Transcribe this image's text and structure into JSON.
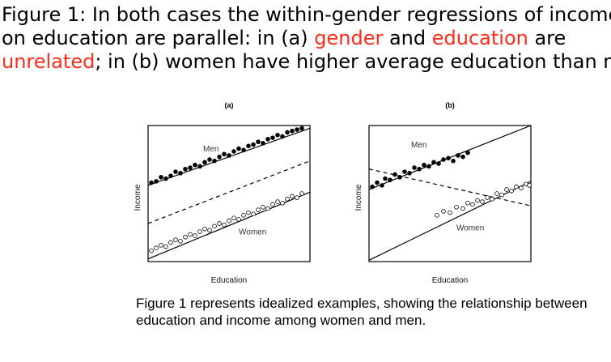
{
  "headline": {
    "line1": "Figure 1: In both cases the within-gender regressions of income",
    "line2_a": "on education are parallel: in (a) ",
    "line2_hl1": "gender",
    "line2_b": " and ",
    "line2_hl2": "education",
    "line2_c": " are",
    "line3_hl": "unrelated",
    "line3_a": "; in (b) women have higher average education than men"
  },
  "caption": "Figure 1 represents idealized examples, showing the relationship between education and income among women and men.",
  "colors": {
    "highlight": "#ff2a1a",
    "ink": "#000000"
  },
  "chart_data": [
    {
      "type": "scatter",
      "title": "(a)",
      "xlabel": "Education",
      "ylabel": "Income",
      "xlim": [
        0,
        10
      ],
      "ylim": [
        0,
        10
      ],
      "series": [
        {
          "name": "Men",
          "marker": "filled",
          "points": [
            [
              0.2,
              5.8
            ],
            [
              0.5,
              5.9
            ],
            [
              0.8,
              6.2
            ],
            [
              1.1,
              6.1
            ],
            [
              1.4,
              6.3
            ],
            [
              1.7,
              6.6
            ],
            [
              2.0,
              6.5
            ],
            [
              2.3,
              6.8
            ],
            [
              2.6,
              6.9
            ],
            [
              2.9,
              7.1
            ],
            [
              3.2,
              7.0
            ],
            [
              3.5,
              7.3
            ],
            [
              3.8,
              7.5
            ],
            [
              4.1,
              7.4
            ],
            [
              4.4,
              7.7
            ],
            [
              4.7,
              7.9
            ],
            [
              5.0,
              7.8
            ],
            [
              5.3,
              8.1
            ],
            [
              5.6,
              8.3
            ],
            [
              5.9,
              8.2
            ],
            [
              6.2,
              8.5
            ],
            [
              6.5,
              8.6
            ],
            [
              6.8,
              8.8
            ],
            [
              7.1,
              8.7
            ],
            [
              7.4,
              9.0
            ],
            [
              7.7,
              9.1
            ],
            [
              8.0,
              9.3
            ],
            [
              8.3,
              9.2
            ],
            [
              8.6,
              9.5
            ],
            [
              8.9,
              9.6
            ],
            [
              9.2,
              9.7
            ],
            [
              9.5,
              9.8
            ]
          ]
        },
        {
          "name": "Women",
          "marker": "open",
          "points": [
            [
              0.2,
              0.8
            ],
            [
              0.5,
              1.0
            ],
            [
              0.8,
              1.2
            ],
            [
              1.1,
              1.1
            ],
            [
              1.4,
              1.4
            ],
            [
              1.7,
              1.6
            ],
            [
              2.0,
              1.5
            ],
            [
              2.3,
              1.8
            ],
            [
              2.6,
              2.0
            ],
            [
              2.9,
              1.9
            ],
            [
              3.2,
              2.2
            ],
            [
              3.5,
              2.4
            ],
            [
              3.8,
              2.3
            ],
            [
              4.1,
              2.6
            ],
            [
              4.4,
              2.8
            ],
            [
              4.7,
              2.7
            ],
            [
              5.0,
              3.0
            ],
            [
              5.3,
              3.2
            ],
            [
              5.6,
              3.1
            ],
            [
              5.9,
              3.4
            ],
            [
              6.2,
              3.6
            ],
            [
              6.5,
              3.5
            ],
            [
              6.8,
              3.8
            ],
            [
              7.1,
              4.0
            ],
            [
              7.4,
              3.9
            ],
            [
              7.7,
              4.2
            ],
            [
              8.0,
              4.4
            ],
            [
              8.3,
              4.3
            ],
            [
              8.6,
              4.6
            ],
            [
              8.9,
              4.8
            ],
            [
              9.2,
              4.7
            ],
            [
              9.5,
              5.0
            ]
          ]
        }
      ],
      "fits": [
        {
          "style": "solid",
          "from": [
            0,
            5.6
          ],
          "to": [
            10,
            9.8
          ]
        },
        {
          "style": "solid",
          "from": [
            0,
            0.2
          ],
          "to": [
            10,
            5.1
          ]
        },
        {
          "style": "dashed",
          "from": [
            0,
            2.8
          ],
          "to": [
            10,
            7.4
          ]
        }
      ],
      "labels": [
        {
          "text": "Men",
          "at": [
            3.4,
            8.1
          ]
        },
        {
          "text": "Women",
          "at": [
            5.6,
            2.0
          ]
        }
      ]
    },
    {
      "type": "scatter",
      "title": "(b)",
      "xlabel": "Education",
      "ylabel": "Income",
      "xlim": [
        0,
        10
      ],
      "ylim": [
        0,
        10
      ],
      "series": [
        {
          "name": "Men",
          "marker": "filled",
          "points": [
            [
              0.2,
              5.5
            ],
            [
              0.5,
              5.8
            ],
            [
              0.8,
              5.6
            ],
            [
              1.0,
              6.1
            ],
            [
              1.3,
              6.0
            ],
            [
              1.6,
              6.4
            ],
            [
              1.9,
              6.2
            ],
            [
              2.2,
              6.6
            ],
            [
              2.5,
              6.5
            ],
            [
              2.8,
              6.9
            ],
            [
              3.1,
              6.8
            ],
            [
              3.4,
              7.1
            ],
            [
              3.7,
              7.0
            ],
            [
              4.0,
              7.3
            ],
            [
              4.3,
              7.2
            ],
            [
              4.6,
              7.5
            ],
            [
              4.9,
              7.6
            ],
            [
              5.2,
              7.4
            ],
            [
              5.5,
              7.8
            ],
            [
              5.8,
              7.7
            ],
            [
              6.1,
              8.0
            ]
          ]
        },
        {
          "name": "Women",
          "marker": "open",
          "points": [
            [
              4.2,
              3.4
            ],
            [
              4.6,
              3.7
            ],
            [
              5.0,
              3.6
            ],
            [
              5.4,
              4.0
            ],
            [
              5.8,
              3.9
            ],
            [
              6.1,
              4.3
            ],
            [
              6.4,
              4.2
            ],
            [
              6.7,
              4.5
            ],
            [
              7.0,
              4.4
            ],
            [
              7.3,
              4.7
            ],
            [
              7.6,
              4.6
            ],
            [
              7.9,
              5.0
            ],
            [
              8.2,
              4.9
            ],
            [
              8.5,
              5.3
            ],
            [
              8.8,
              5.2
            ],
            [
              9.1,
              5.5
            ],
            [
              9.4,
              5.4
            ],
            [
              9.7,
              5.7
            ],
            [
              9.9,
              5.6
            ]
          ]
        }
      ],
      "fits": [
        {
          "style": "solid",
          "from": [
            0,
            5.3
          ],
          "to": [
            10,
            10.0
          ]
        },
        {
          "style": "solid",
          "from": [
            0,
            0.1
          ],
          "to": [
            10,
            5.9
          ]
        },
        {
          "style": "dashed",
          "from": [
            0,
            6.8
          ],
          "to": [
            10,
            4.1
          ]
        }
      ],
      "labels": [
        {
          "text": "Men",
          "at": [
            2.6,
            8.4
          ]
        },
        {
          "text": "Women",
          "at": [
            5.4,
            2.3
          ]
        }
      ]
    }
  ]
}
